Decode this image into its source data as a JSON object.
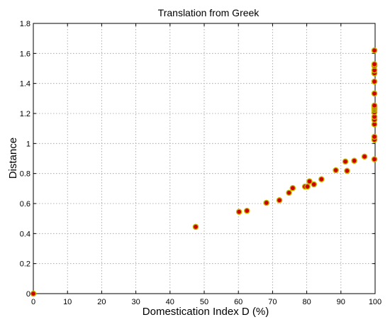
{
  "chart_data": {
    "type": "scatter",
    "title": "Translation from Greek",
    "xlabel": "Domestication Index D (%)",
    "ylabel": "Distance",
    "xlim": [
      0,
      100
    ],
    "ylim": [
      0,
      1.8
    ],
    "xticks": [
      0,
      10,
      20,
      30,
      40,
      50,
      60,
      70,
      80,
      90,
      100
    ],
    "xtick_labels": [
      "0",
      "10",
      "20",
      "30",
      "40",
      "50",
      "60",
      "70",
      "80",
      "90",
      "100"
    ],
    "yticks": [
      0,
      0.2,
      0.4,
      0.6,
      0.8,
      1,
      1.2,
      1.4,
      1.6,
      1.8
    ],
    "ytick_labels": [
      "0",
      "0.2",
      "0.4",
      "0.6",
      "0.8",
      "1",
      "1.2",
      "1.4",
      "1.6",
      "1.8"
    ],
    "grid": true,
    "marker_fill": "#cc0000",
    "marker_edge": "#c8b400",
    "series": [
      {
        "points": [
          [
            0,
            0
          ],
          [
            47.5,
            0.445
          ],
          [
            60.2,
            0.545
          ],
          [
            62.5,
            0.552
          ],
          [
            68.2,
            0.605
          ],
          [
            72.0,
            0.622
          ],
          [
            74.8,
            0.672
          ],
          [
            75.9,
            0.703
          ],
          [
            79.5,
            0.713
          ],
          [
            80.2,
            0.713
          ],
          [
            80.8,
            0.748
          ],
          [
            82.1,
            0.728
          ],
          [
            84.3,
            0.762
          ],
          [
            88.5,
            0.822
          ],
          [
            91.3,
            0.88
          ],
          [
            91.8,
            0.818
          ],
          [
            93.9,
            0.885
          ],
          [
            96.9,
            0.913
          ],
          [
            99.8,
            0.895
          ],
          [
            99.8,
            1.025
          ],
          [
            99.8,
            1.045
          ],
          [
            99.8,
            1.128
          ],
          [
            99.8,
            1.158
          ],
          [
            99.8,
            1.178
          ],
          [
            99.8,
            1.208
          ],
          [
            99.8,
            1.223
          ],
          [
            99.8,
            1.233
          ],
          [
            99.8,
            1.243
          ],
          [
            99.8,
            1.253
          ],
          [
            99.8,
            1.333
          ],
          [
            99.8,
            1.413
          ],
          [
            99.8,
            1.468
          ],
          [
            99.8,
            1.488
          ],
          [
            99.8,
            1.518
          ],
          [
            99.8,
            1.528
          ],
          [
            99.8,
            1.62
          ]
        ]
      }
    ]
  }
}
